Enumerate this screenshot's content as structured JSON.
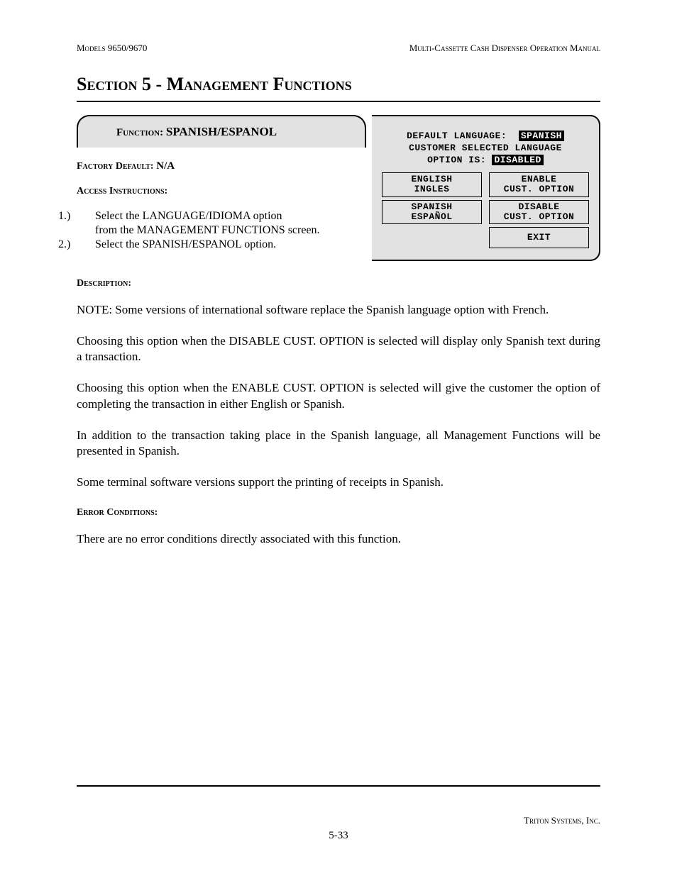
{
  "header": {
    "left": "Models 9650/9670",
    "right": "Multi-Cassette Cash Dispenser Operation Manual"
  },
  "section_title": "Section 5 - Management Functions",
  "function_box": {
    "label": "Function:",
    "name": "SPANISH/ESPANOL"
  },
  "factory_default": {
    "label": "Factory Default:",
    "value": "N/A"
  },
  "access_instructions": {
    "label": "Access Instructions:",
    "items": [
      {
        "num": "1.)",
        "line1": "Select the LANGUAGE/IDIOMA option",
        "line2": "from the MANAGEMENT FUNCTIONS screen."
      },
      {
        "num": "2.)",
        "line1": "Select the SPANISH/ESPANOL option."
      }
    ]
  },
  "atm": {
    "line1_label": "DEFAULT LANGUAGE:",
    "line1_value": "SPANISH",
    "line2": "CUSTOMER SELECTED LANGUAGE",
    "line3_label": "OPTION IS:",
    "line3_value": "DISABLED",
    "buttons": {
      "r1c1a": "ENGLISH",
      "r1c1b": "INGLES",
      "r1c2a": "ENABLE",
      "r1c2b": "CUST. OPTION",
      "r2c1a": "SPANISH",
      "r2c1b": "ESPAÑOL",
      "r2c2a": "DISABLE",
      "r2c2b": "CUST. OPTION",
      "r3c2": "EXIT"
    }
  },
  "description": {
    "label": "Description:",
    "p1": "NOTE: Some versions of international software replace the Spanish language option with French.",
    "p2": "Choosing this option when the DISABLE CUST. OPTION is selected will display only Spanish text during a transaction.",
    "p3": "Choosing this option when the ENABLE CUST. OPTION is selected will give the customer the option of completing the transaction in either English or Spanish.",
    "p4": "In addition to the transaction taking place in the Spanish language, all Management Functions will be presented in Spanish.",
    "p5": "Some terminal  software versions support the printing of receipts in Spanish."
  },
  "error_conditions": {
    "label": "Error Conditions:",
    "text": "There are no error conditions directly associated with this function."
  },
  "footer": {
    "company": "Triton Systems, Inc.",
    "page": "5-33"
  }
}
